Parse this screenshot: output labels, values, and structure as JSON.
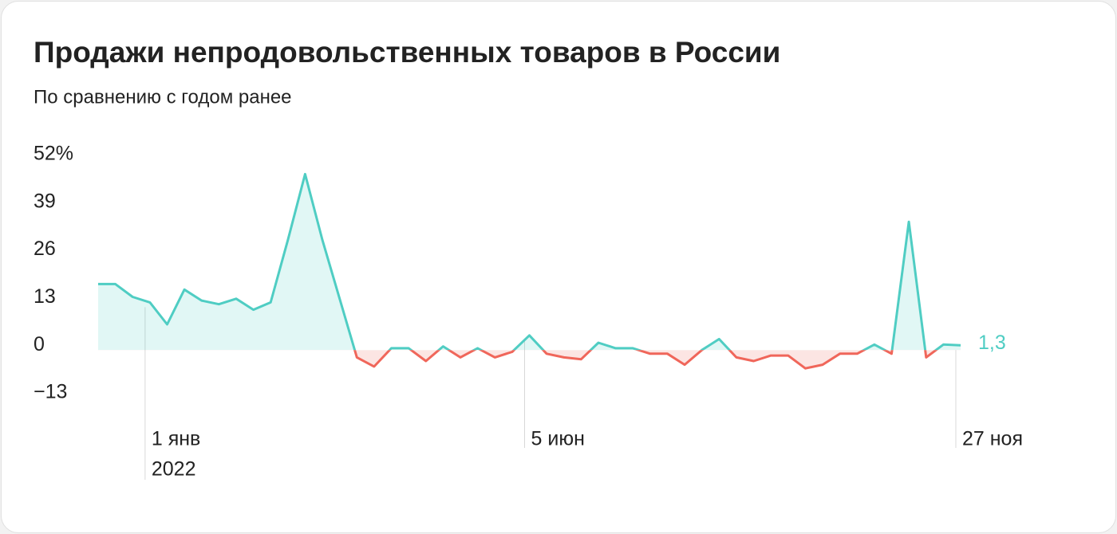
{
  "chart_data": {
    "type": "line",
    "title": "Продажи непродовольственных товаров в России",
    "subtitle": "По сравнению с годом ранее",
    "categories": [
      null,
      null,
      null,
      "1 янв",
      null,
      null,
      null,
      null,
      null,
      null,
      null,
      null,
      null,
      null,
      null,
      null,
      null,
      null,
      null,
      null,
      null,
      null,
      null,
      null,
      null,
      "5 июн",
      null,
      null,
      null,
      null,
      null,
      null,
      null,
      null,
      null,
      null,
      null,
      null,
      null,
      null,
      null,
      null,
      null,
      null,
      null,
      null,
      null,
      null,
      null,
      null,
      "27 ноя"
    ],
    "year_label": "2022",
    "values": [
      18,
      18,
      14.5,
      13,
      7,
      16.5,
      13.5,
      12.5,
      14,
      11,
      13,
      30,
      48,
      30,
      14,
      -2,
      -4.5,
      0.5,
      0.5,
      -3,
      1,
      -2,
      0.5,
      -2,
      -0.5,
      4,
      -1,
      -2,
      -2.5,
      2,
      0.5,
      0.5,
      -1,
      -1,
      -4,
      0,
      3,
      -2,
      -3,
      -1.5,
      -1.5,
      -5,
      -4,
      -1,
      -1,
      1.5,
      -1,
      35,
      -2,
      1.5,
      1.3
    ],
    "end_label": "1,3",
    "color": "#4fcdc3",
    "negative_color": "#f0665a",
    "ylim": [
      -13,
      52
    ],
    "yticks": [
      {
        "value": 52,
        "label": "52%"
      },
      39,
      26,
      13,
      0,
      {
        "value": -13,
        "label": "−13"
      }
    ],
    "grid": false
  }
}
